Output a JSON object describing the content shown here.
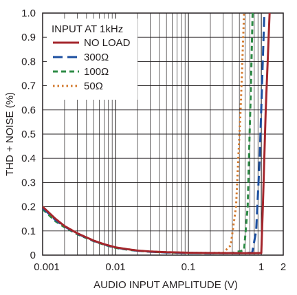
{
  "chart_data": {
    "type": "line",
    "title": "",
    "xlabel": "AUDIO INPUT AMPLITUDE (V)",
    "ylabel": "THD + NOISE (%)",
    "x_scale": "log",
    "xlim": [
      0.001,
      2
    ],
    "ylim": [
      0,
      1.0
    ],
    "grid": true,
    "x_ticks": [
      0.001,
      0.01,
      0.1,
      1,
      2
    ],
    "x_tick_labels": [
      "0.001",
      "0.01",
      "0.1",
      "1",
      "2"
    ],
    "y_ticks": [
      0,
      0.1,
      0.2,
      0.3,
      0.4,
      0.5,
      0.6,
      0.7,
      0.8,
      0.9,
      1.0
    ],
    "y_tick_labels": [
      "0",
      "0.1",
      "0.2",
      "0.3",
      "0.4",
      "0.5",
      "0.6",
      "0.7",
      "0.8",
      "0.9",
      "1.0"
    ],
    "legend": {
      "title": "INPUT AT 1kHz",
      "placement": "top-left"
    },
    "series": [
      {
        "name": "NO LOAD",
        "color": "#a4262c",
        "dash": "solid",
        "points": [
          [
            0.001,
            0.2
          ],
          [
            0.0015,
            0.15
          ],
          [
            0.002,
            0.12
          ],
          [
            0.003,
            0.09
          ],
          [
            0.005,
            0.06
          ],
          [
            0.007,
            0.045
          ],
          [
            0.01,
            0.032
          ],
          [
            0.015,
            0.024
          ],
          [
            0.02,
            0.019
          ],
          [
            0.03,
            0.015
          ],
          [
            0.05,
            0.012
          ],
          [
            0.1,
            0.01
          ],
          [
            0.2,
            0.009
          ],
          [
            0.5,
            0.008
          ],
          [
            0.8,
            0.008
          ],
          [
            1.0,
            0.009
          ],
          [
            1.05,
            0.2
          ],
          [
            1.15,
            0.6
          ],
          [
            1.3,
            1.0
          ]
        ]
      },
      {
        "name": "300Ω",
        "color": "#1c4fa0",
        "dash": "long-dash",
        "points": [
          [
            0.001,
            0.195
          ],
          [
            0.0015,
            0.145
          ],
          [
            0.002,
            0.118
          ],
          [
            0.003,
            0.088
          ],
          [
            0.005,
            0.059
          ],
          [
            0.007,
            0.044
          ],
          [
            0.01,
            0.031
          ],
          [
            0.015,
            0.023
          ],
          [
            0.02,
            0.018
          ],
          [
            0.03,
            0.014
          ],
          [
            0.05,
            0.011
          ],
          [
            0.1,
            0.009
          ],
          [
            0.2,
            0.008
          ],
          [
            0.5,
            0.008
          ],
          [
            0.75,
            0.01
          ],
          [
            0.85,
            0.1
          ],
          [
            0.95,
            0.4
          ],
          [
            1.1,
            1.0
          ]
        ]
      },
      {
        "name": "100Ω",
        "color": "#2e8b46",
        "dash": "dashed",
        "points": [
          [
            0.001,
            0.19
          ],
          [
            0.0015,
            0.14
          ],
          [
            0.002,
            0.115
          ],
          [
            0.003,
            0.086
          ],
          [
            0.005,
            0.058
          ],
          [
            0.007,
            0.043
          ],
          [
            0.01,
            0.03
          ],
          [
            0.015,
            0.022
          ],
          [
            0.02,
            0.018
          ],
          [
            0.03,
            0.014
          ],
          [
            0.05,
            0.011
          ],
          [
            0.1,
            0.009
          ],
          [
            0.2,
            0.008
          ],
          [
            0.4,
            0.009
          ],
          [
            0.58,
            0.02
          ],
          [
            0.65,
            0.2
          ],
          [
            0.72,
            0.7
          ],
          [
            0.76,
            1.0
          ]
        ]
      },
      {
        "name": "50Ω",
        "color": "#d2772a",
        "dash": "dotted",
        "points": [
          [
            0.001,
            0.2
          ],
          [
            0.0015,
            0.148
          ],
          [
            0.002,
            0.12
          ],
          [
            0.003,
            0.09
          ],
          [
            0.005,
            0.06
          ],
          [
            0.007,
            0.045
          ],
          [
            0.01,
            0.032
          ],
          [
            0.015,
            0.024
          ],
          [
            0.02,
            0.019
          ],
          [
            0.03,
            0.015
          ],
          [
            0.05,
            0.012
          ],
          [
            0.1,
            0.01
          ],
          [
            0.2,
            0.009
          ],
          [
            0.3,
            0.01
          ],
          [
            0.38,
            0.04
          ],
          [
            0.45,
            0.2
          ],
          [
            0.52,
            0.6
          ],
          [
            0.58,
            1.0
          ]
        ]
      }
    ]
  }
}
